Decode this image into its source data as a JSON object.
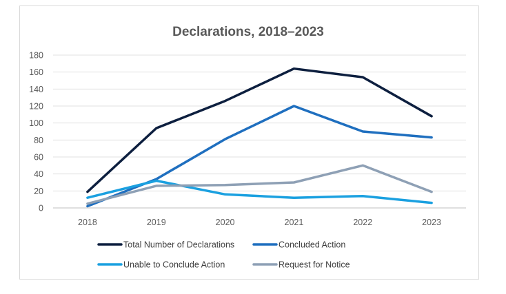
{
  "chart_data": {
    "type": "line",
    "title": "Declarations, 2018–2023",
    "xlabel": "",
    "ylabel": "",
    "categories": [
      "2018",
      "2019",
      "2020",
      "2021",
      "2022",
      "2023"
    ],
    "ylim": [
      0,
      180
    ],
    "yticks": [
      0,
      20,
      40,
      60,
      80,
      100,
      120,
      140,
      160,
      180
    ],
    "grid": true,
    "legend_position": "bottom",
    "series": [
      {
        "name": "Total Number of Declarations",
        "color": "#0d1f3f",
        "values": [
          19,
          94,
          126,
          164,
          154,
          108
        ]
      },
      {
        "name": "Concluded Action",
        "color": "#1f6fbf",
        "values": [
          2,
          34,
          81,
          120,
          90,
          83
        ]
      },
      {
        "name": "Unable to Conclude Action",
        "color": "#1aa0e0",
        "values": [
          12,
          32,
          16,
          12,
          14,
          6
        ]
      },
      {
        "name": "Request for Notice",
        "color": "#8ea0b5",
        "values": [
          5,
          26,
          27,
          30,
          50,
          19
        ]
      }
    ]
  }
}
